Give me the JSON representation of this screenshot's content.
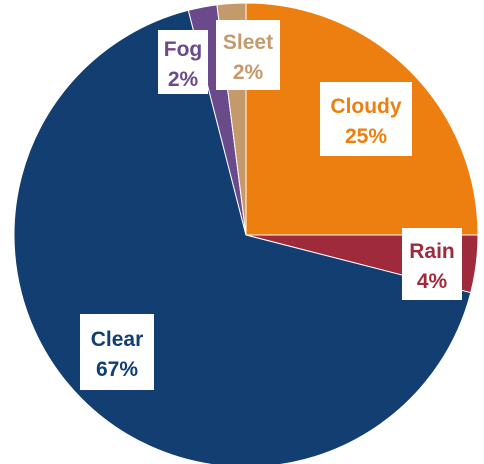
{
  "chart_data": {
    "type": "pie",
    "title": "",
    "slices": [
      {
        "label": "Cloudy",
        "value": 25,
        "percent_label": "25%",
        "color": "#ED7F10"
      },
      {
        "label": "Rain",
        "value": 4,
        "percent_label": "4%",
        "color": "#9E2A3C"
      },
      {
        "label": "Clear",
        "value": 67,
        "percent_label": "67%",
        "color": "#123E72"
      },
      {
        "label": "Fog",
        "value": 2,
        "percent_label": "2%",
        "color": "#6A4A8A"
      },
      {
        "label": "Sleet",
        "value": 2,
        "percent_label": "2%",
        "color": "#C49A6C"
      }
    ]
  }
}
